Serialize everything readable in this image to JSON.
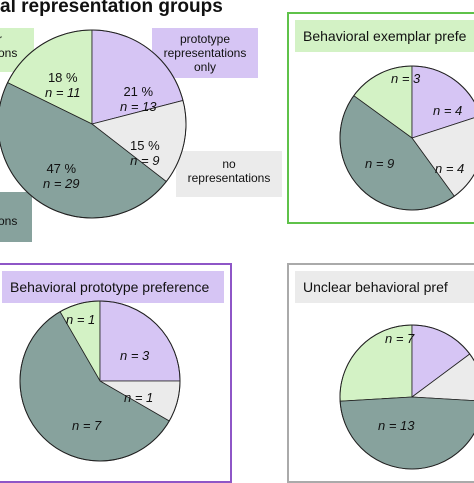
{
  "title": "al representation groups",
  "colors": {
    "exemplar": "#d3f2c5",
    "prototype": "#d6c5f4",
    "none": "#ebebeb",
    "both": "#87a29d",
    "exemplar_border": "#5fc24a",
    "prototype_border": "#8e56c7",
    "unclear_border": "#aaaaaa"
  },
  "callouts": {
    "exemplar": "r\nons",
    "prototype": "prototype\nrepresentations\nonly",
    "none": "no\nrepresentations",
    "both": "ons"
  },
  "chart_data": [
    {
      "type": "pie",
      "title": "",
      "slices": [
        {
          "group": "exemplar",
          "pct": "18 %",
          "n": 11,
          "label": "n = 11"
        },
        {
          "group": "prototype",
          "pct": "21 %",
          "n": 13,
          "label": "n = 13"
        },
        {
          "group": "none",
          "pct": "15 %",
          "n": 9,
          "label": "n = 9"
        },
        {
          "group": "both",
          "pct": "47 %",
          "n": 29,
          "label": "n = 29"
        }
      ]
    },
    {
      "type": "pie",
      "title": "Behavioral exemplar prefe",
      "slices": [
        {
          "group": "exemplar",
          "n": 3,
          "label": "n = 3"
        },
        {
          "group": "prototype",
          "n": 4,
          "label": "n = 4"
        },
        {
          "group": "none",
          "n": 4,
          "label": "n = 4"
        },
        {
          "group": "both",
          "n": 9,
          "label": "n = 9"
        }
      ]
    },
    {
      "type": "pie",
      "title": "Behavioral prototype preference",
      "slices": [
        {
          "group": "exemplar",
          "n": 1,
          "label": "n = 1"
        },
        {
          "group": "prototype",
          "n": 3,
          "label": "n = 3"
        },
        {
          "group": "none",
          "n": 1,
          "label": "n = 1"
        },
        {
          "group": "both",
          "n": 7,
          "label": "n = 7"
        }
      ]
    },
    {
      "type": "pie",
      "title": "Unclear behavioral pref",
      "slices": [
        {
          "group": "exemplar",
          "n": 7,
          "label": "n = 7"
        },
        {
          "group": "prototype",
          "n": 4,
          "label": ""
        },
        {
          "group": "none",
          "n": 3,
          "label": ""
        },
        {
          "group": "both",
          "n": 13,
          "label": "n = 13"
        }
      ]
    }
  ]
}
